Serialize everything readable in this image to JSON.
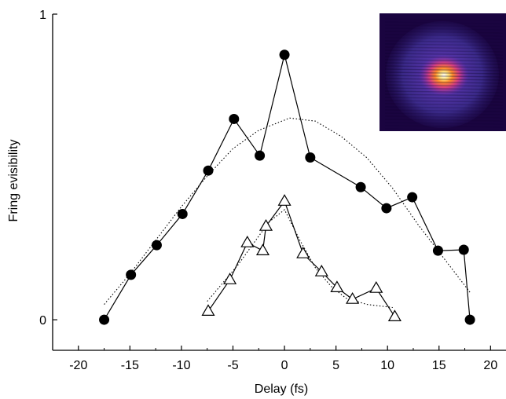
{
  "chart_data": {
    "type": "line",
    "title": "",
    "xlabel": "Delay (fs)",
    "ylabel": "Fring evisibility",
    "xlim": [
      -22.5,
      21.5
    ],
    "ylim": [
      -0.1,
      1.0
    ],
    "x_ticks": [
      -20,
      -15,
      -10,
      -5,
      0,
      5,
      10,
      15,
      20
    ],
    "x_tick_labels": [
      "-20",
      "-15",
      "-10",
      "-5",
      "0",
      "5",
      "10",
      "15",
      "20"
    ],
    "y_ticks": [
      0,
      1
    ],
    "y_tick_labels": [
      "0",
      "1"
    ],
    "grid": false,
    "legend": "none",
    "series": [
      {
        "marker": "filled-circle",
        "color": "#000000",
        "x": [
          -17.5,
          -14.9,
          -12.4,
          -9.9,
          -7.4,
          -4.9,
          -2.4,
          0,
          2.5,
          7.4,
          9.9,
          12.4,
          14.9,
          17.4,
          18.0
        ],
        "y": [
          0.0,
          0.147,
          0.244,
          0.346,
          0.488,
          0.657,
          0.537,
          0.867,
          0.531,
          0.434,
          0.365,
          0.401,
          0.226,
          0.229,
          0.0
        ]
      },
      {
        "marker": "open-triangle",
        "color": "#000000",
        "x": [
          -7.4,
          -5.3,
          -3.6,
          -2.1,
          -1.8,
          0,
          1.8,
          3.6,
          5.1,
          6.6,
          8.9,
          10.7
        ],
        "y": [
          0.028,
          0.131,
          0.252,
          0.226,
          0.306,
          0.388,
          0.216,
          0.157,
          0.105,
          0.067,
          0.103,
          0.01
        ]
      }
    ],
    "fits": [
      {
        "style": "dotted",
        "color": "#000000",
        "x": [
          -17.5,
          -15,
          -12.5,
          -10,
          -7.5,
          -5,
          -2.5,
          0.5,
          3,
          5.5,
          8,
          10.5,
          13,
          15.5,
          18
        ],
        "y": [
          0.05,
          0.15,
          0.26,
          0.37,
          0.47,
          0.56,
          0.62,
          0.66,
          0.65,
          0.6,
          0.53,
          0.43,
          0.31,
          0.2,
          0.09
        ]
      },
      {
        "style": "dotted",
        "color": "#000000",
        "x": [
          -7.5,
          -6,
          -4.5,
          -3,
          -1.5,
          0,
          1.5,
          3,
          4.5,
          6,
          8,
          10.5
        ],
        "y": [
          0.06,
          0.12,
          0.18,
          0.25,
          0.32,
          0.36,
          0.26,
          0.17,
          0.11,
          0.07,
          0.05,
          0.04
        ]
      }
    ],
    "inset": {
      "kind": "intensity-image",
      "palette": [
        "#1a0440",
        "#3b2a8a",
        "#7b2bb0",
        "#d53e80",
        "#ff8a2a",
        "#ffe27a",
        "#ffffff"
      ]
    }
  }
}
